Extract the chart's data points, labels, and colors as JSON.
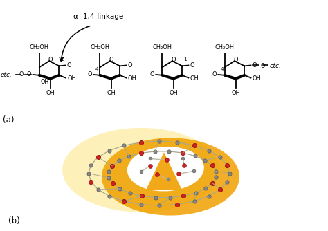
{
  "panel_a_label": "(a)",
  "panel_b_label": "(b)",
  "linkage_label": "α -1,4-linkage",
  "bg_color": "#ffffff",
  "helix_outer_color": "#f5c518",
  "helix_mid_color": "#f0a000",
  "helix_orange_color": "#f0a000",
  "helix_white": "#ffffff",
  "node_carbon_color": "#888888",
  "node_oxygen_color": "#cc2222",
  "node_edge_carbon": "#555555",
  "node_edge_oxygen": "#880000"
}
